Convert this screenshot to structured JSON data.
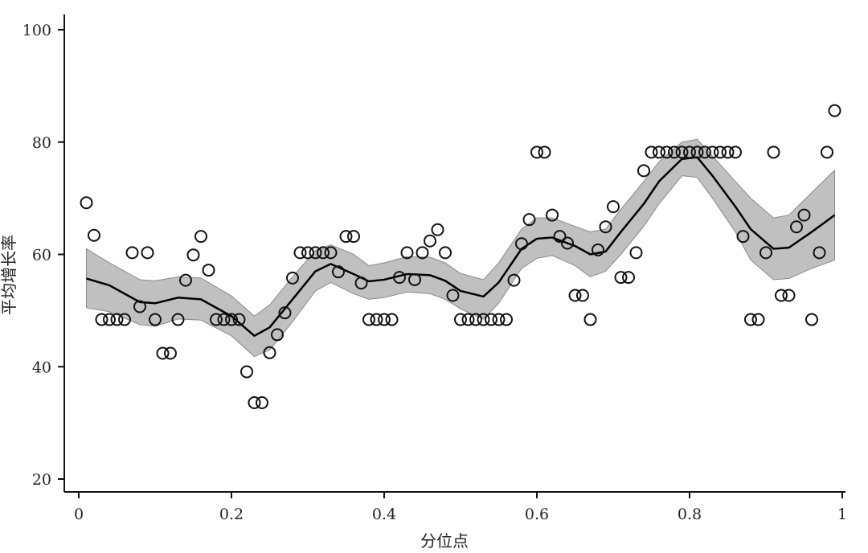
{
  "chart_data": {
    "type": "scatter",
    "title": "",
    "xlabel": "分位点",
    "ylabel": "平均增长率",
    "xlim": [
      0,
      1
    ],
    "ylim": [
      20,
      100
    ],
    "xticks": [
      0,
      0.2,
      0.4,
      0.6,
      0.8,
      1
    ],
    "xtick_labels": [
      "0",
      "0.2",
      "0.4",
      "0.6",
      "0.8",
      "1"
    ],
    "yticks": [
      20,
      40,
      60,
      80,
      100
    ],
    "ytick_labels": [
      "20",
      "40",
      "60",
      "80",
      "100"
    ],
    "grid": false,
    "colors": {
      "points": "#111111",
      "line": "#000000",
      "band": "#c0c0c0",
      "band_edge": "#8a8a8a"
    },
    "points": {
      "x": [
        0.01,
        0.02,
        0.03,
        0.04,
        0.05,
        0.06,
        0.07,
        0.08,
        0.09,
        0.1,
        0.11,
        0.12,
        0.13,
        0.14,
        0.15,
        0.16,
        0.17,
        0.18,
        0.19,
        0.2,
        0.21,
        0.22,
        0.23,
        0.24,
        0.25,
        0.26,
        0.27,
        0.28,
        0.29,
        0.3,
        0.31,
        0.32,
        0.33,
        0.34,
        0.35,
        0.36,
        0.37,
        0.38,
        0.39,
        0.4,
        0.41,
        0.42,
        0.43,
        0.44,
        0.45,
        0.46,
        0.47,
        0.48,
        0.49,
        0.5,
        0.51,
        0.52,
        0.53,
        0.54,
        0.55,
        0.56,
        0.57,
        0.58,
        0.59,
        0.6,
        0.61,
        0.62,
        0.63,
        0.64,
        0.65,
        0.66,
        0.67,
        0.68,
        0.69,
        0.7,
        0.71,
        0.72,
        0.73,
        0.74,
        0.75,
        0.76,
        0.77,
        0.78,
        0.79,
        0.8,
        0.81,
        0.82,
        0.83,
        0.84,
        0.85,
        0.86,
        0.87,
        0.88,
        0.89,
        0.9,
        0.91,
        0.92,
        0.93,
        0.94,
        0.95,
        0.96,
        0.97,
        0.98,
        0.99
      ],
      "y": [
        69.2,
        63.4,
        48.4,
        48.4,
        48.4,
        48.4,
        60.3,
        50.7,
        60.3,
        48.4,
        42.4,
        42.4,
        48.4,
        55.4,
        59.9,
        63.2,
        57.2,
        48.4,
        48.4,
        48.4,
        48.4,
        39.1,
        33.6,
        33.6,
        42.5,
        45.7,
        49.6,
        55.8,
        60.3,
        60.3,
        60.3,
        60.3,
        60.3,
        56.9,
        63.2,
        63.2,
        54.9,
        48.4,
        48.4,
        48.4,
        48.4,
        55.9,
        60.3,
        55.5,
        60.3,
        62.4,
        64.4,
        60.3,
        52.7,
        48.4,
        48.4,
        48.4,
        48.4,
        48.4,
        48.4,
        48.4,
        55.4,
        61.9,
        66.2,
        78.2,
        78.2,
        67.0,
        63.2,
        62.0,
        52.7,
        52.7,
        48.4,
        60.8,
        64.9,
        68.5,
        55.9,
        55.9,
        60.3,
        74.9,
        78.2,
        78.2,
        78.2,
        78.2,
        78.2,
        78.2,
        78.2,
        78.2,
        78.2,
        78.2,
        78.2,
        78.2,
        63.2,
        48.4,
        48.4,
        60.3,
        78.2,
        52.7,
        52.7,
        64.9,
        67.0,
        48.4,
        60.3,
        78.2,
        85.6
      ]
    },
    "smooth": {
      "x": [
        0.01,
        0.04,
        0.08,
        0.1,
        0.13,
        0.16,
        0.2,
        0.23,
        0.25,
        0.28,
        0.31,
        0.33,
        0.36,
        0.38,
        0.4,
        0.43,
        0.46,
        0.48,
        0.5,
        0.53,
        0.55,
        0.58,
        0.6,
        0.62,
        0.65,
        0.67,
        0.69,
        0.71,
        0.74,
        0.76,
        0.79,
        0.81,
        0.83,
        0.86,
        0.88,
        0.91,
        0.93,
        0.96,
        0.99
      ],
      "fit": [
        55.7,
        54.5,
        51.5,
        51.3,
        52.3,
        52.0,
        49.0,
        45.5,
        47.0,
        52.0,
        57.0,
        58.3,
        56.5,
        55.2,
        55.5,
        56.5,
        56.3,
        55.3,
        53.5,
        52.5,
        55.0,
        61.0,
        62.8,
        63.0,
        61.5,
        60.0,
        60.5,
        64.0,
        69.0,
        73.0,
        77.0,
        77.3,
        74.0,
        68.5,
        64.5,
        61.0,
        61.2,
        64.0,
        67.0
      ],
      "lower": [
        50.5,
        49.8,
        47.5,
        47.2,
        48.5,
        48.3,
        45.5,
        41.8,
        43.0,
        48.0,
        53.5,
        55.0,
        53.0,
        52.0,
        52.3,
        53.3,
        53.0,
        52.0,
        50.3,
        48.5,
        51.3,
        57.5,
        59.3,
        59.8,
        58.0,
        56.0,
        57.0,
        60.0,
        65.0,
        69.0,
        74.0,
        73.7,
        70.0,
        64.0,
        59.0,
        55.5,
        55.7,
        57.5,
        59.0
      ],
      "upper": [
        61.0,
        58.5,
        55.5,
        55.3,
        56.0,
        55.8,
        52.6,
        49.0,
        51.0,
        56.0,
        60.7,
        61.7,
        60.0,
        58.0,
        58.5,
        59.6,
        59.5,
        58.5,
        56.6,
        55.5,
        58.5,
        64.5,
        66.5,
        66.5,
        65.0,
        64.0,
        64.5,
        68.0,
        73.0,
        76.5,
        80.0,
        80.5,
        77.5,
        73.0,
        70.0,
        66.5,
        67.0,
        71.0,
        75.0
      ]
    }
  }
}
